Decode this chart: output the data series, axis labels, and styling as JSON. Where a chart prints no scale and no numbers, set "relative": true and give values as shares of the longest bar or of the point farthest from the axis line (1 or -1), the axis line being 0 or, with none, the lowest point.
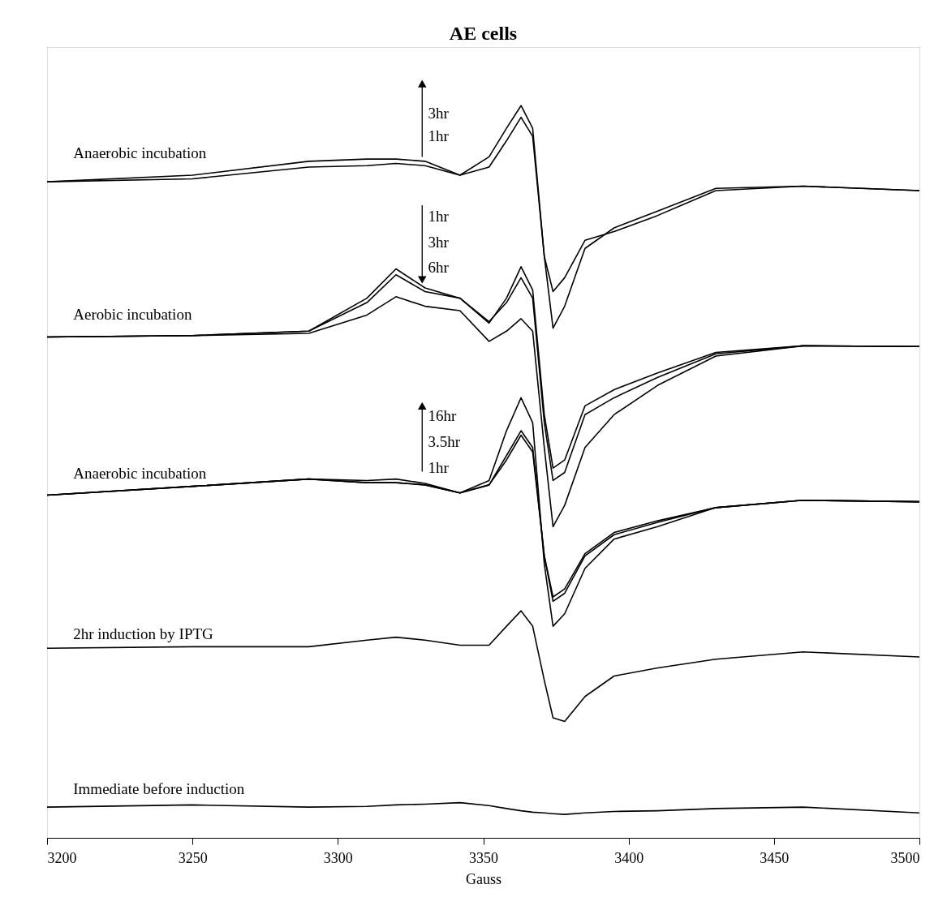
{
  "chart_data": {
    "type": "line",
    "title": "AE cells",
    "xlabel": "Gauss",
    "relative": true,
    "grid": false,
    "xlim": [
      3200,
      3500
    ],
    "xticks": [
      3200,
      3250,
      3300,
      3350,
      3400,
      3450,
      3500
    ],
    "x": [
      3200,
      3250,
      3290,
      3310,
      3320,
      3330,
      3342,
      3352,
      3358,
      3363,
      3367,
      3371,
      3374,
      3378,
      3385,
      3395,
      3410,
      3430,
      3460,
      3500
    ],
    "series": [
      {
        "color": "#000000",
        "values": [
          0.896,
          0.905,
          0.924,
          0.927,
          0.927,
          0.924,
          0.905,
          0.93,
          0.969,
          1.0,
          0.969,
          0.794,
          0.696,
          0.726,
          0.805,
          0.833,
          0.856,
          0.887,
          0.89,
          0.884
        ]
      },
      {
        "color": "#000000",
        "values": [
          0.896,
          0.9,
          0.916,
          0.918,
          0.921,
          0.918,
          0.905,
          0.916,
          0.952,
          0.984,
          0.958,
          0.794,
          0.746,
          0.765,
          0.816,
          0.828,
          0.85,
          0.884,
          0.89,
          0.884
        ]
      },
      {
        "color": "#000000",
        "values": [
          0.684,
          0.686,
          0.692,
          0.737,
          0.777,
          0.751,
          0.737,
          0.703,
          0.737,
          0.78,
          0.748,
          0.578,
          0.505,
          0.516,
          0.59,
          0.612,
          0.635,
          0.663,
          0.672,
          0.671
        ]
      },
      {
        "color": "#000000",
        "values": [
          0.684,
          0.686,
          0.692,
          0.731,
          0.769,
          0.746,
          0.737,
          0.705,
          0.731,
          0.765,
          0.737,
          0.567,
          0.488,
          0.499,
          0.578,
          0.601,
          0.629,
          0.661,
          0.672,
          0.671
        ]
      },
      {
        "color": "#000000",
        "values": [
          0.684,
          0.686,
          0.689,
          0.714,
          0.739,
          0.726,
          0.72,
          0.678,
          0.692,
          0.709,
          0.692,
          0.533,
          0.425,
          0.454,
          0.533,
          0.578,
          0.618,
          0.658,
          0.672,
          0.671
        ]
      },
      {
        "color": "#000000",
        "values": [
          0.468,
          0.48,
          0.49,
          0.488,
          0.49,
          0.484,
          0.471,
          0.488,
          0.556,
          0.601,
          0.567,
          0.374,
          0.289,
          0.306,
          0.368,
          0.408,
          0.425,
          0.451,
          0.461,
          0.459
        ]
      },
      {
        "color": "#000000",
        "values": [
          0.468,
          0.48,
          0.49,
          0.485,
          0.485,
          0.482,
          0.471,
          0.482,
          0.522,
          0.556,
          0.533,
          0.385,
          0.323,
          0.334,
          0.385,
          0.414,
          0.431,
          0.451,
          0.461,
          0.459
        ]
      },
      {
        "color": "#000000",
        "values": [
          0.468,
          0.48,
          0.49,
          0.485,
          0.485,
          0.482,
          0.471,
          0.482,
          0.516,
          0.55,
          0.527,
          0.385,
          0.329,
          0.34,
          0.388,
          0.417,
          0.433,
          0.451,
          0.461,
          0.459
        ]
      },
      {
        "color": "#000000",
        "values": [
          0.259,
          0.261,
          0.261,
          0.27,
          0.274,
          0.27,
          0.263,
          0.263,
          0.289,
          0.31,
          0.289,
          0.215,
          0.164,
          0.159,
          0.193,
          0.221,
          0.232,
          0.244,
          0.254,
          0.247
        ]
      },
      {
        "color": "#000000",
        "values": [
          0.042,
          0.045,
          0.042,
          0.043,
          0.045,
          0.046,
          0.048,
          0.044,
          0.04,
          0.037,
          0.035,
          0.034,
          0.033,
          0.032,
          0.034,
          0.036,
          0.037,
          0.04,
          0.042,
          0.034
        ]
      }
    ],
    "annotations": [
      "Anaerobic incubation",
      "3hr",
      "1hr",
      "Aerobic incubation",
      "1hr",
      "3hr",
      "6hr",
      "Anaerobic incubation",
      "16hr",
      "3.5hr",
      "1hr",
      "2hr induction by IPTG",
      "Immediate before induction"
    ]
  }
}
